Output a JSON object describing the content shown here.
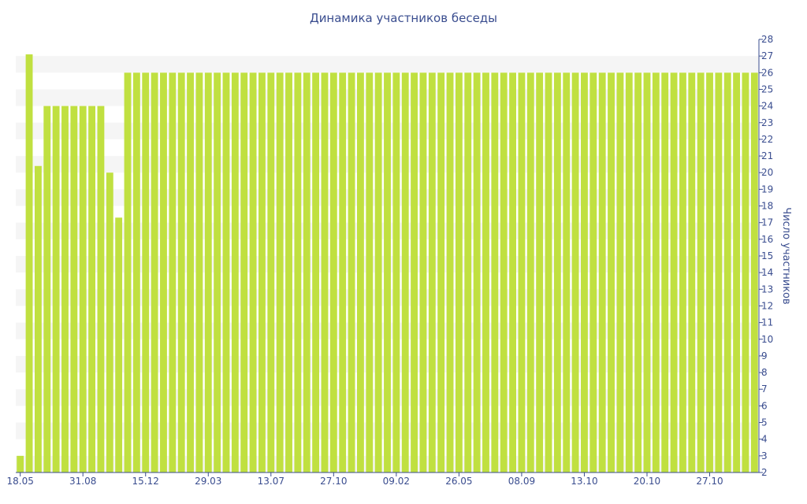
{
  "chart_data": {
    "type": "bar",
    "title": "Динамика участников беседы",
    "xlabel": "",
    "ylabel": "Число участников",
    "ylim": [
      2,
      28
    ],
    "y_ticks": [
      2,
      3,
      4,
      5,
      6,
      7,
      8,
      9,
      10,
      11,
      12,
      13,
      14,
      15,
      16,
      17,
      18,
      19,
      20,
      21,
      22,
      23,
      24,
      25,
      26,
      27,
      28
    ],
    "x_tick_labels": [
      {
        "index": 0,
        "label": "18.05"
      },
      {
        "index": 7,
        "label": "31.08"
      },
      {
        "index": 14,
        "label": "15.12"
      },
      {
        "index": 21,
        "label": "29.03"
      },
      {
        "index": 28,
        "label": "13.07"
      },
      {
        "index": 35,
        "label": "27.10"
      },
      {
        "index": 42,
        "label": "09.02"
      },
      {
        "index": 49,
        "label": "26.05"
      },
      {
        "index": 56,
        "label": "08.09"
      },
      {
        "index": 63,
        "label": "13.10"
      },
      {
        "index": 70,
        "label": "20.10"
      },
      {
        "index": 77,
        "label": "27.10"
      }
    ],
    "values": [
      3,
      27.1,
      20.4,
      24,
      24,
      24,
      24,
      24,
      24,
      24,
      20,
      17.3,
      26,
      26,
      26,
      26,
      26,
      26,
      26,
      26,
      26,
      26,
      26,
      26,
      26,
      26,
      26,
      26,
      26,
      26,
      26,
      26,
      26,
      26,
      26,
      26,
      26,
      26,
      26,
      26,
      26,
      26,
      26,
      26,
      26,
      26,
      26,
      26,
      26,
      26,
      26,
      26,
      26,
      26,
      26,
      26,
      26,
      26,
      26,
      26,
      26,
      26,
      26,
      26,
      26,
      26,
      26,
      26,
      26,
      26,
      26,
      26,
      26,
      26,
      26,
      26,
      26,
      26,
      26,
      26,
      26,
      26,
      26
    ],
    "grid": "alternating horizontal bands",
    "y_axis_position": "right",
    "colors": {
      "bar": "#c0e040",
      "band": "#f5f5f5",
      "text": "#3a4d8f",
      "axis": "#3a4d8f"
    }
  }
}
